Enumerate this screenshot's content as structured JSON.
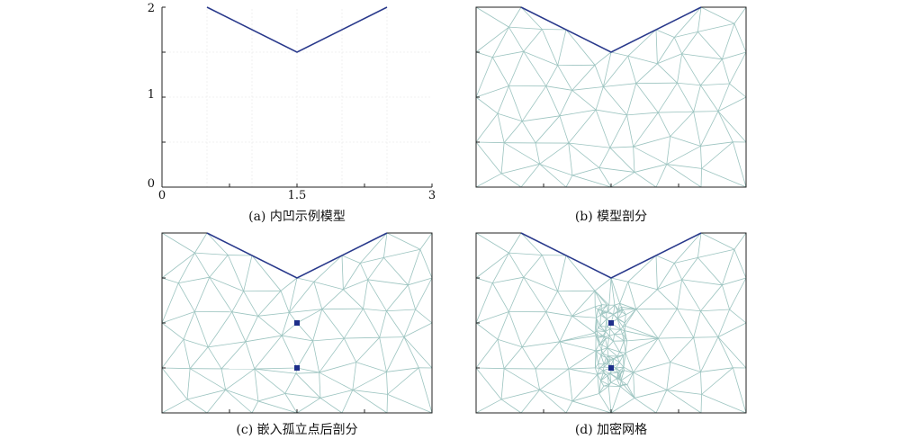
{
  "panels": [
    {
      "id": "a",
      "caption": "(a) 内凹示例模型",
      "type": "model",
      "y_ticks": [
        "2",
        "1",
        "0"
      ],
      "x_ticks": [
        "0",
        "1.5",
        "3"
      ]
    },
    {
      "id": "b",
      "caption": "(b) 模型剖分",
      "type": "mesh"
    },
    {
      "id": "c",
      "caption": "(c) 嵌入孤立点后剖分",
      "type": "mesh_isolated",
      "isolated_points": [
        [
          1.5,
          1.0
        ],
        [
          1.5,
          0.5
        ]
      ]
    },
    {
      "id": "d",
      "caption": "(d) 加密网格",
      "type": "mesh_refined",
      "isolated_points": [
        [
          1.5,
          1.0
        ],
        [
          1.5,
          0.5
        ]
      ]
    }
  ],
  "model": {
    "domain_x": [
      0,
      3
    ],
    "domain_y": [
      0,
      2
    ],
    "vertices": [
      [
        0,
        0
      ],
      [
        3,
        0
      ],
      [
        3,
        2
      ],
      [
        2.5,
        2
      ],
      [
        1.5,
        1.5
      ],
      [
        0.5,
        2
      ],
      [
        0,
        2
      ]
    ]
  },
  "colors": {
    "boundary": "#2a3a8c",
    "mesh": "#9cc4c0",
    "point": "#1e2f8a",
    "frame": "#222222",
    "grid": "#e6e6e6"
  }
}
